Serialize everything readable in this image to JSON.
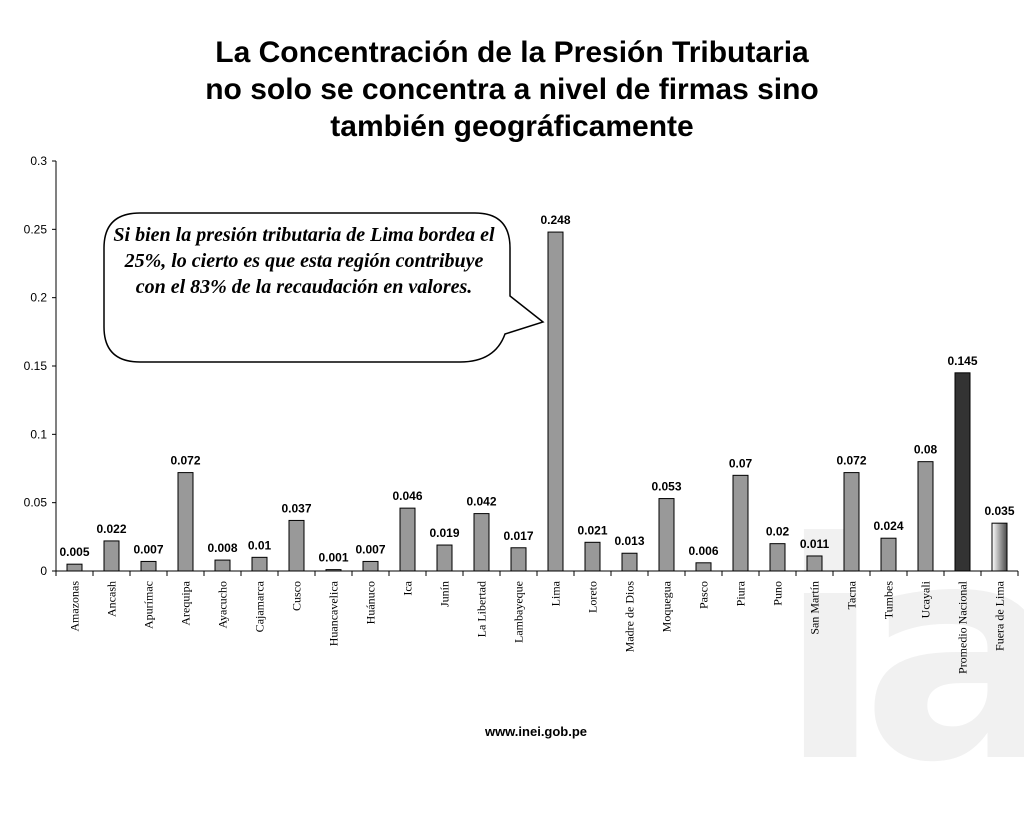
{
  "header": {
    "title_line1": "La Concentración de la Presión Tributaria",
    "title_line2": "no solo se concentra a nivel de firmas sino",
    "title_line3": "también geográficamente"
  },
  "callout": {
    "text": "Si bien la presión tributaria de Lima bordea el 25%, lo cierto es que  esta región contribuye con el 83% de la recaudación en valores."
  },
  "footer": {
    "url": "www.inei.gob.pe"
  },
  "watermark": {
    "text": "ia"
  },
  "colors": {
    "bar": "#999999",
    "national": "#333333",
    "outline": "#000000",
    "background": "#ffffff"
  },
  "chart_data": {
    "type": "bar",
    "title": "",
    "xlabel": "",
    "ylabel": "",
    "ylim": [
      0,
      0.3
    ],
    "yticks": [
      "0",
      "0.05",
      "0.1",
      "0.15",
      "0.2",
      "0.25",
      "0.3"
    ],
    "grid": false,
    "legend": "none",
    "categories": [
      "Amazonas",
      "Ancash",
      "Apurímac",
      "Arequipa",
      "Ayacucho",
      "Cajamarca",
      "Cusco",
      "Huancavelica",
      "Huánuco",
      "Ica",
      "Junín",
      "La Libertad",
      "Lambayeque",
      "Lima",
      "Loreto",
      "Madre de Dios",
      "Moquegua",
      "Pasco",
      "Piura",
      "Puno",
      "San Martín",
      "Tacna",
      "Tumbes",
      "Ucayali",
      "Promedio Nacional",
      "Fuera de Lima"
    ],
    "values": [
      0.005,
      0.022,
      0.007,
      0.072,
      0.008,
      0.01,
      0.037,
      0.001,
      0.007,
      0.046,
      0.019,
      0.042,
      0.017,
      0.248,
      0.021,
      0.013,
      0.053,
      0.006,
      0.07,
      0.02,
      0.011,
      0.072,
      0.024,
      0.08,
      0.145,
      0.035
    ],
    "labels": [
      "0.005",
      "0.022",
      "0.007",
      "0.072",
      "0.008",
      "0.01",
      "0.037",
      "0.001",
      "0.007",
      "0.046",
      "0.019",
      "0.042",
      "0.017",
      "0.248",
      "0.021",
      "0.013",
      "0.053",
      "0.006",
      "0.07",
      "0.02",
      "0.011",
      "0.072",
      "0.024",
      "0.08",
      "0.145",
      "0.035"
    ]
  }
}
